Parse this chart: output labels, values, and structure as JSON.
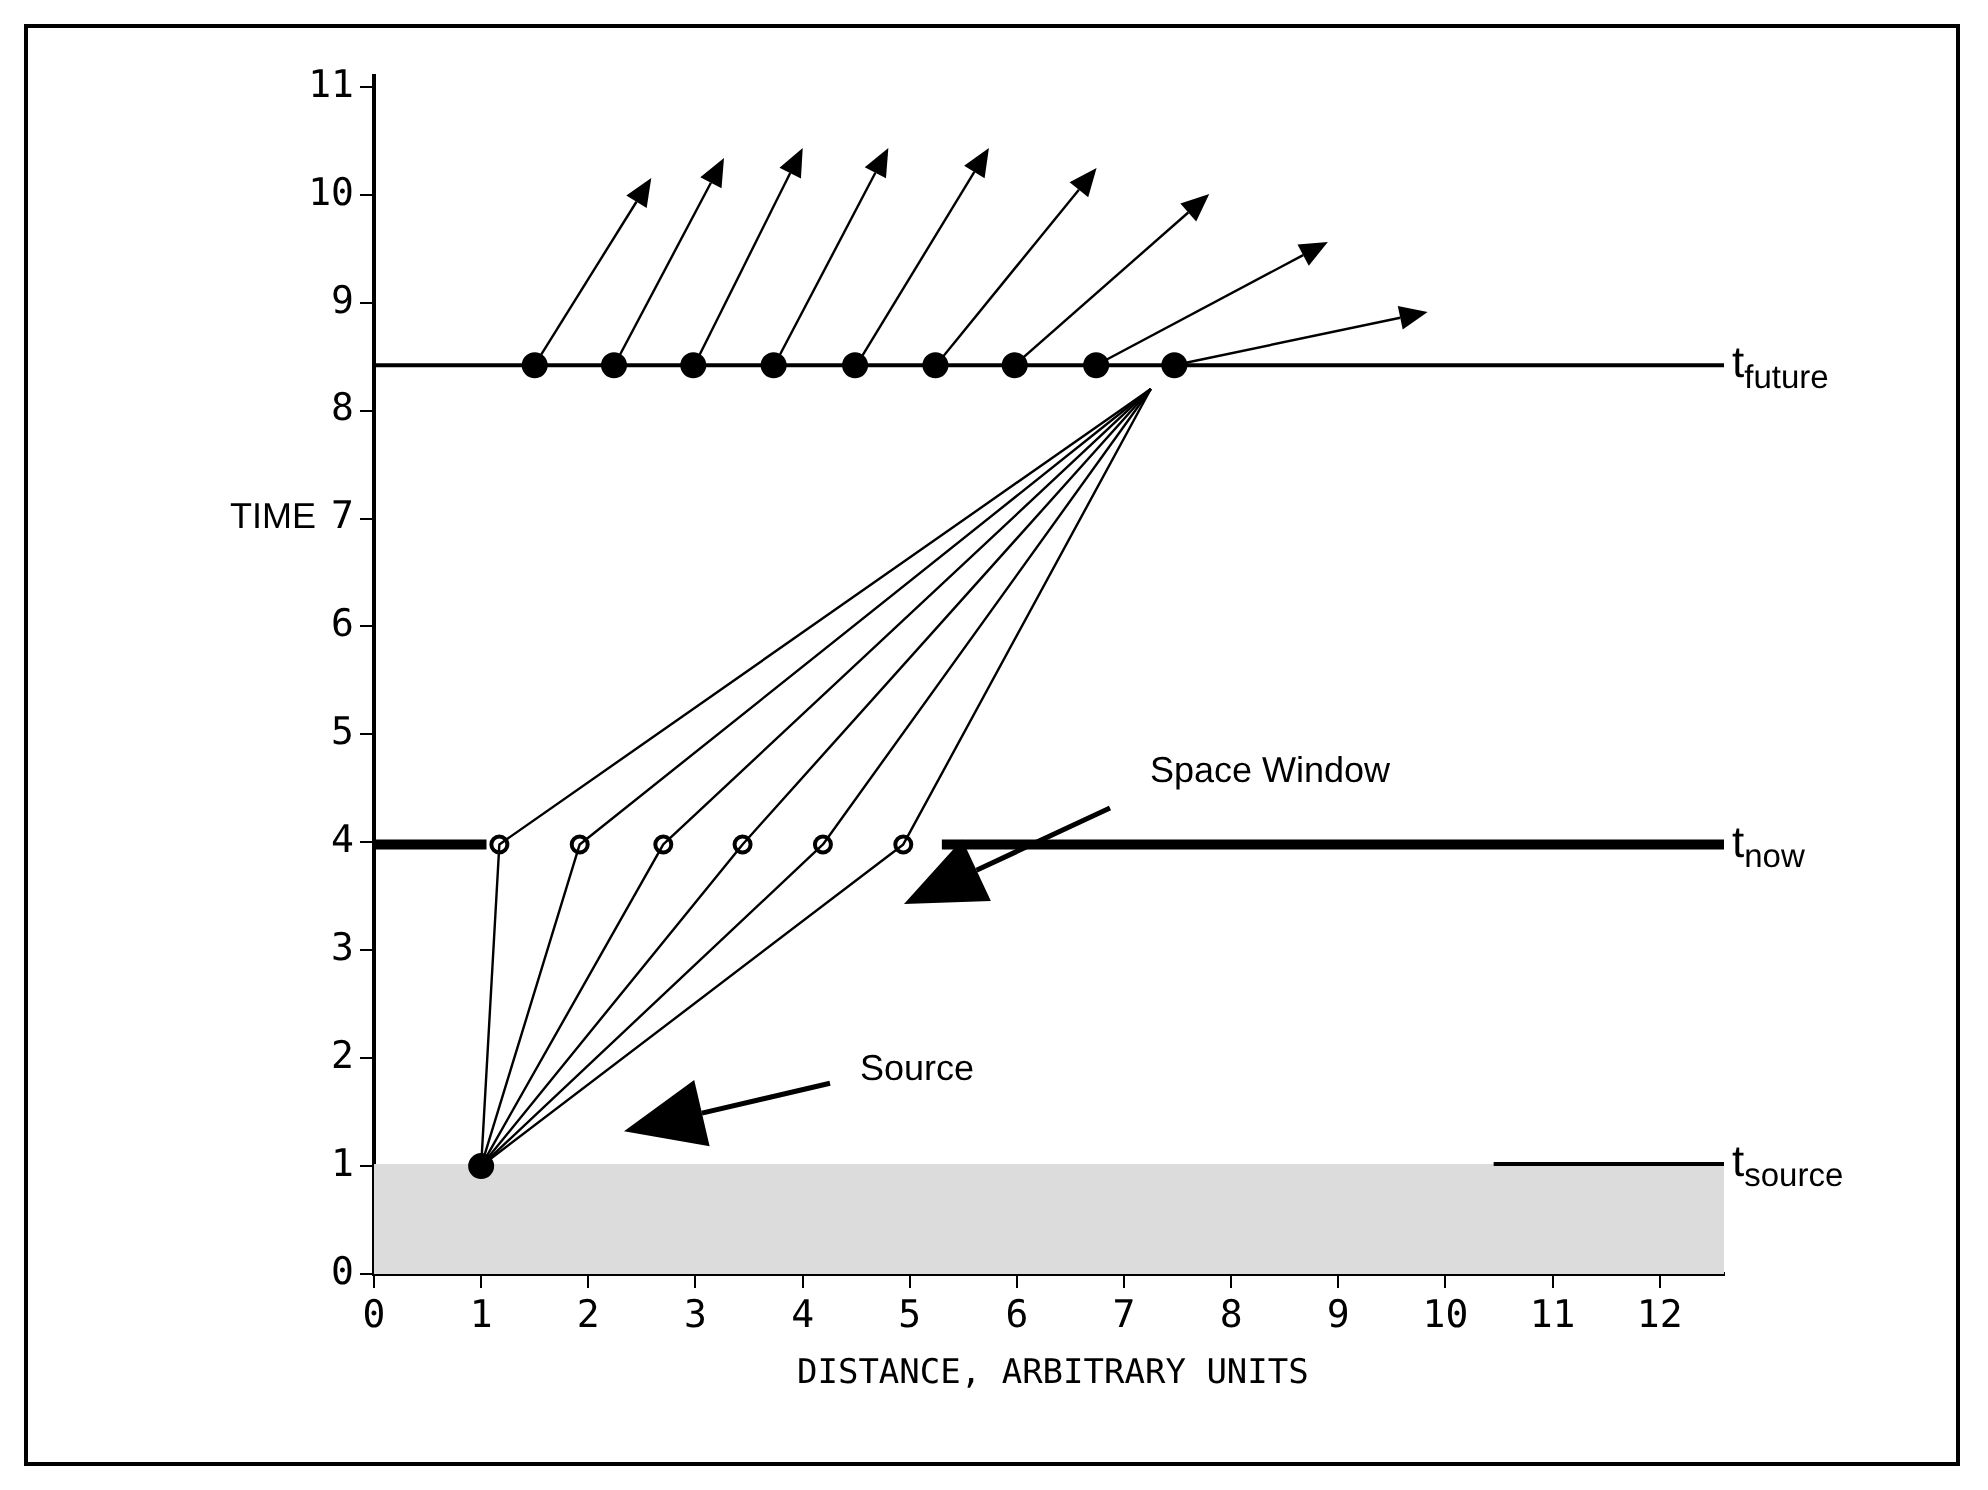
{
  "chart_data": {
    "type": "scatter",
    "xlabel": "DISTANCE, ARBITRARY UNITS",
    "ylabel": "TIME",
    "xlim": [
      0,
      12.6
    ],
    "ylim": [
      0,
      11.1
    ],
    "xticks": [
      0,
      1,
      2,
      3,
      4,
      5,
      6,
      7,
      8,
      9,
      10,
      11,
      12
    ],
    "yticks": [
      0,
      1,
      2,
      3,
      4,
      5,
      6,
      7,
      8,
      9,
      10,
      11
    ],
    "grid": false,
    "bands": [
      {
        "axis": "y",
        "from": 0,
        "to": 1.02,
        "color": "#dcdcdc"
      }
    ],
    "annotations": [
      "Source",
      "Space Window"
    ],
    "series": [
      {
        "type": "line",
        "name": "t$_{future}$",
        "color": "#000000",
        "x": [
          0,
          12.6
        ],
        "values": [
          8.42,
          8.42
        ]
      },
      {
        "type": "line",
        "name": "t$_{now}$",
        "color": "#000000",
        "x": [
          0,
          1.05,
          3,
          5.3,
          12.6
        ],
        "values": [
          3.98,
          3.98,
          null,
          3.98,
          3.98
        ]
      },
      {
        "type": "line",
        "name": "t$_{source}$",
        "color": "#000000",
        "x": [
          10.45,
          12.6
        ],
        "values": [
          1.02,
          1.02
        ]
      },
      {
        "type": "line",
        "color": "#000000",
        "x": [
          1,
          1.17,
          7.25
        ],
        "values": [
          1,
          3.98,
          8.2
        ]
      },
      {
        "type": "line",
        "color": "#000000",
        "x": [
          1,
          1.92,
          7.25
        ],
        "values": [
          1,
          3.98,
          8.2
        ]
      },
      {
        "type": "line",
        "color": "#000000",
        "x": [
          1,
          2.7,
          7.25
        ],
        "values": [
          1,
          3.98,
          8.2
        ]
      },
      {
        "type": "line",
        "color": "#000000",
        "x": [
          1,
          3.44,
          7.25
        ],
        "values": [
          1,
          3.98,
          8.2
        ]
      },
      {
        "type": "line",
        "color": "#000000",
        "x": [
          1,
          4.19,
          7.25
        ],
        "values": [
          1,
          3.98,
          8.2
        ]
      },
      {
        "type": "line",
        "color": "#000000",
        "x": [
          1,
          4.94,
          7.25
        ],
        "values": [
          1,
          3.98,
          8.2
        ]
      },
      {
        "marker": "circle",
        "color": "#000000",
        "x": [
          1.5,
          2.24,
          2.98,
          3.73,
          4.49,
          5.24,
          5.98,
          6.74,
          7.47
        ],
        "values": [
          8.42,
          8.42,
          8.42,
          8.42,
          8.42,
          8.42,
          8.42,
          8.42,
          8.42
        ]
      },
      {
        "marker": "circle",
        "color": "#000000",
        "x": [
          1.17,
          1.92,
          2.7,
          3.44,
          4.19,
          4.94
        ],
        "values": [
          3.98,
          3.98,
          3.98,
          3.98,
          3.98,
          3.98
        ]
      },
      {
        "marker": "circle",
        "color": "#000000",
        "x": [
          1
        ],
        "values": [
          1
        ]
      }
    ]
  }
}
